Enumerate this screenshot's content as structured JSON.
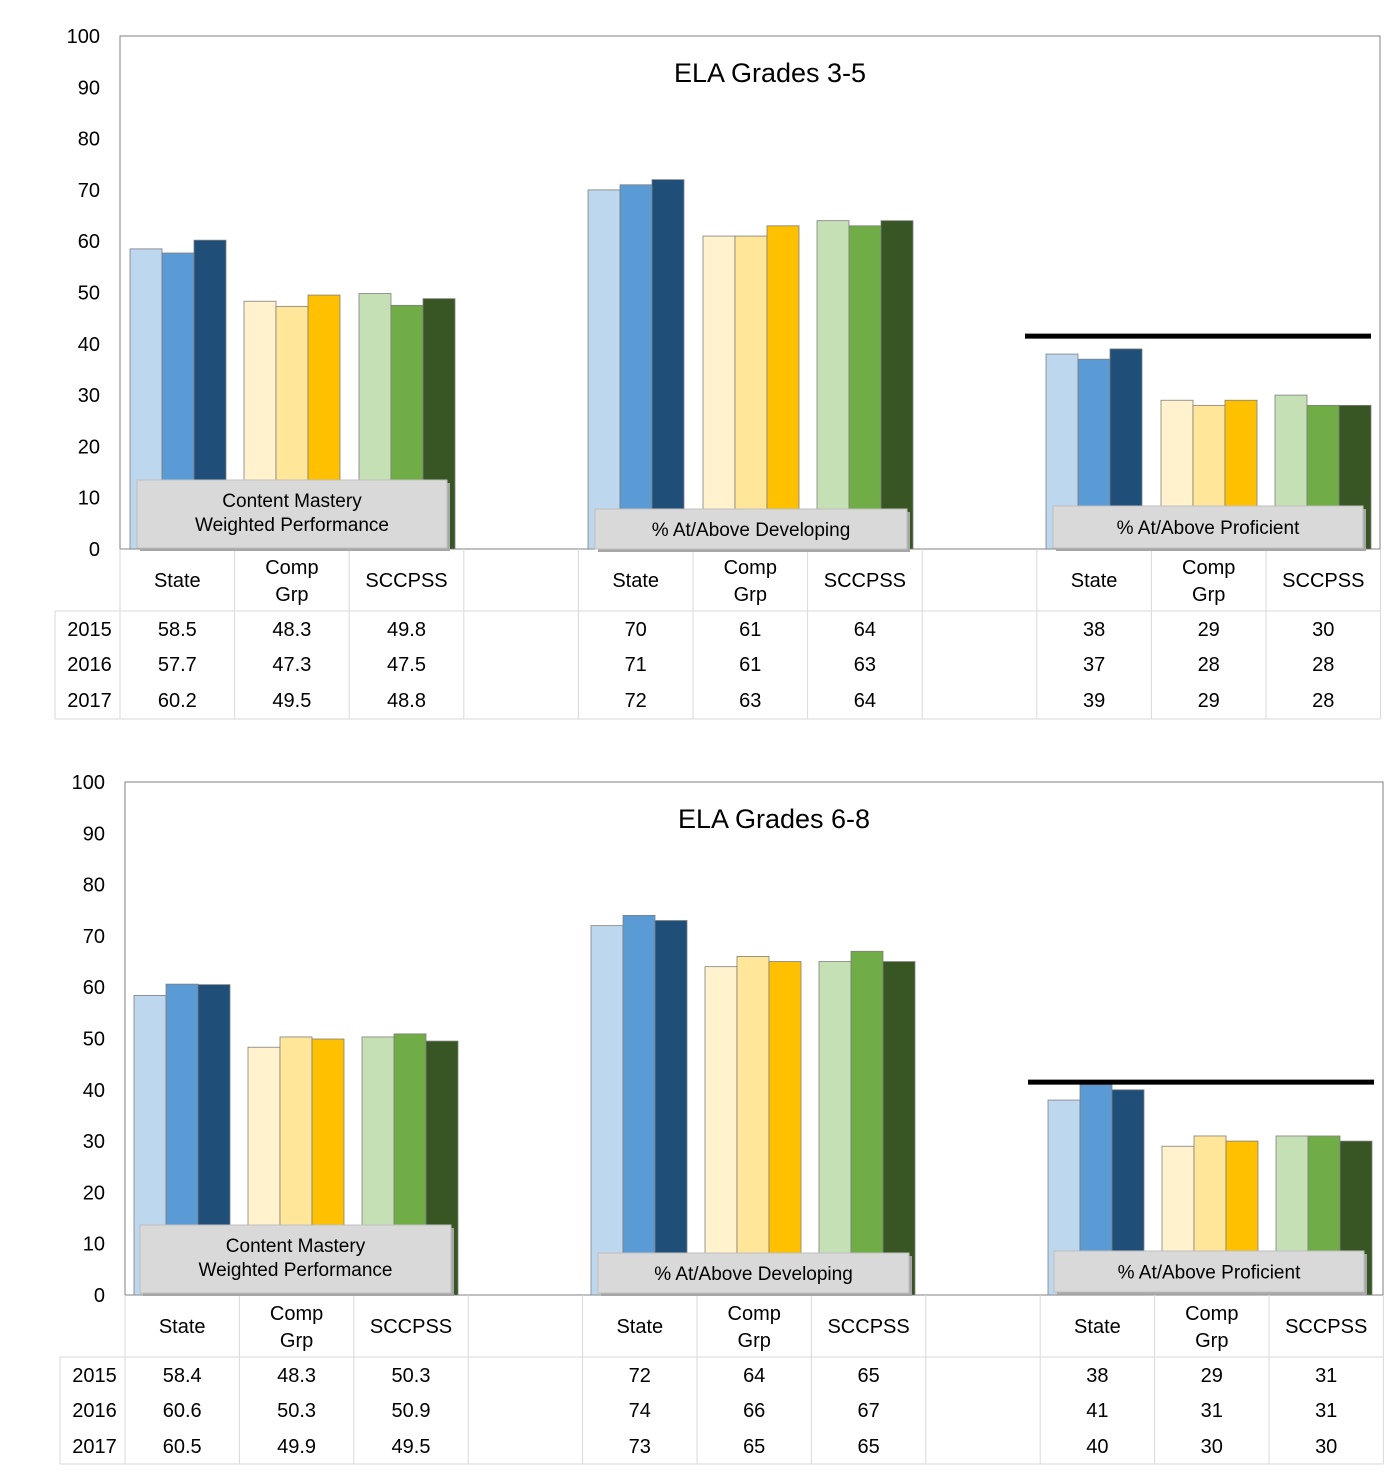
{
  "chart_data": [
    {
      "type": "bar",
      "title": "ELA Grades 3-5",
      "ylim": [
        0,
        100
      ],
      "yticks": [
        "0",
        "10",
        "20",
        "30",
        "40",
        "50",
        "60",
        "70",
        "80",
        "90",
        "100"
      ],
      "years": [
        "2015",
        "2016",
        "2017"
      ],
      "groups": [
        {
          "label": "Content Mastery\nWeighted Performance",
          "label_lines": [
            "Content Mastery",
            "Weighted Performance"
          ],
          "target": null,
          "categories": [
            {
              "name": "State",
              "name_lines": [
                "State"
              ],
              "values": [
                58.5,
                57.7,
                60.2
              ],
              "display": [
                "58.5",
                "57.7",
                "60.2"
              ]
            },
            {
              "name": "Comp Grp",
              "name_lines": [
                "Comp",
                "Grp"
              ],
              "values": [
                48.3,
                47.3,
                49.5
              ],
              "display": [
                "48.3",
                "47.3",
                "49.5"
              ]
            },
            {
              "name": "SCCPSS",
              "name_lines": [
                "SCCPSS"
              ],
              "values": [
                49.8,
                47.5,
                48.8
              ],
              "display": [
                "49.8",
                "47.5",
                "48.8"
              ]
            }
          ]
        },
        {
          "label": "% At/Above Developing",
          "label_lines": [
            "% At/Above  Developing"
          ],
          "target": null,
          "categories": [
            {
              "name": "State",
              "name_lines": [
                "State"
              ],
              "values": [
                70,
                71,
                72
              ],
              "display": [
                "70",
                "71",
                "72"
              ]
            },
            {
              "name": "Comp Grp",
              "name_lines": [
                "Comp",
                "Grp"
              ],
              "values": [
                61,
                61,
                63
              ],
              "display": [
                "61",
                "61",
                "63"
              ]
            },
            {
              "name": "SCCPSS",
              "name_lines": [
                "SCCPSS"
              ],
              "values": [
                64,
                63,
                64
              ],
              "display": [
                "64",
                "63",
                "64"
              ]
            }
          ]
        },
        {
          "label": "% At/Above Proficient",
          "label_lines": [
            "% At/Above  Proficient"
          ],
          "target": 41.5,
          "categories": [
            {
              "name": "State",
              "name_lines": [
                "State"
              ],
              "values": [
                38,
                37,
                39
              ],
              "display": [
                "38",
                "37",
                "39"
              ]
            },
            {
              "name": "Comp Grp",
              "name_lines": [
                "Comp",
                "Grp"
              ],
              "values": [
                29,
                28,
                29
              ],
              "display": [
                "29",
                "28",
                "29"
              ]
            },
            {
              "name": "SCCPSS",
              "name_lines": [
                "SCCPSS"
              ],
              "values": [
                30,
                28,
                28
              ],
              "display": [
                "30",
                "28",
                "28"
              ]
            }
          ]
        }
      ]
    },
    {
      "type": "bar",
      "title": "ELA Grades 6-8",
      "ylim": [
        0,
        100
      ],
      "yticks": [
        "0",
        "10",
        "20",
        "30",
        "40",
        "50",
        "60",
        "70",
        "80",
        "90",
        "100"
      ],
      "years": [
        "2015",
        "2016",
        "2017"
      ],
      "groups": [
        {
          "label": "Content Mastery\nWeighted Performance",
          "label_lines": [
            "Content Mastery",
            "Weighted Performance"
          ],
          "target": null,
          "categories": [
            {
              "name": "State",
              "name_lines": [
                "State"
              ],
              "values": [
                58.4,
                60.6,
                60.5
              ],
              "display": [
                "58.4",
                "60.6",
                "60.5"
              ]
            },
            {
              "name": "Comp Grp",
              "name_lines": [
                "Comp",
                "Grp"
              ],
              "values": [
                48.3,
                50.3,
                49.9
              ],
              "display": [
                "48.3",
                "50.3",
                "49.9"
              ]
            },
            {
              "name": "SCCPSS",
              "name_lines": [
                "SCCPSS"
              ],
              "values": [
                50.3,
                50.9,
                49.5
              ],
              "display": [
                "50.3",
                "50.9",
                "49.5"
              ]
            }
          ]
        },
        {
          "label": "% At/Above Developing",
          "label_lines": [
            "% At/Above  Developing"
          ],
          "target": null,
          "categories": [
            {
              "name": "State",
              "name_lines": [
                "State"
              ],
              "values": [
                72,
                74,
                73
              ],
              "display": [
                "72",
                "74",
                "73"
              ]
            },
            {
              "name": "Comp Grp",
              "name_lines": [
                "Comp",
                "Grp"
              ],
              "values": [
                64,
                66,
                65
              ],
              "display": [
                "64",
                "66",
                "65"
              ]
            },
            {
              "name": "SCCPSS",
              "name_lines": [
                "SCCPSS"
              ],
              "values": [
                65,
                67,
                65
              ],
              "display": [
                "65",
                "67",
                "65"
              ]
            }
          ]
        },
        {
          "label": "% At/Above Proficient",
          "label_lines": [
            "% At/Above  Proficient"
          ],
          "target": 41.5,
          "categories": [
            {
              "name": "State",
              "name_lines": [
                "State"
              ],
              "values": [
                38,
                41,
                40
              ],
              "display": [
                "38",
                "41",
                "40"
              ]
            },
            {
              "name": "Comp Grp",
              "name_lines": [
                "Comp",
                "Grp"
              ],
              "values": [
                29,
                31,
                30
              ],
              "display": [
                "29",
                "31",
                "30"
              ]
            },
            {
              "name": "SCCPSS",
              "name_lines": [
                "SCCPSS"
              ],
              "values": [
                31,
                31,
                30
              ],
              "display": [
                "31",
                "31",
                "30"
              ]
            }
          ]
        }
      ]
    }
  ],
  "colors": {
    "State": [
      "#bdd7ee",
      "#5b9bd5",
      "#1f4e79"
    ],
    "Comp Grp": [
      "#fff2cc",
      "#ffe699",
      "#ffc000"
    ],
    "SCCPSS": [
      "#c5e0b4",
      "#70ad47",
      "#375623"
    ],
    "target_line": "#000000",
    "label_box": "#d9d9d9",
    "grid": "#d9d9d9"
  }
}
